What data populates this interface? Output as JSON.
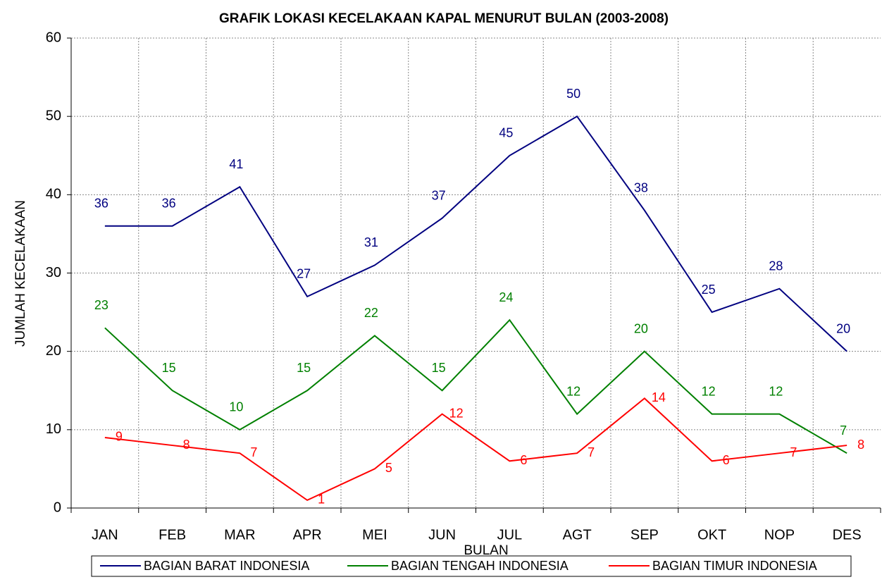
{
  "chart_data": {
    "type": "line",
    "title": "GRAFIK LOKASI KECELAKAAN KAPAL MENURUT BULAN (2003-2008)",
    "x_label": "BULAN",
    "y_label": "JUMLAH KECELAKAAN",
    "categories": [
      "JAN",
      "FEB",
      "MAR",
      "APR",
      "MEI",
      "JUN",
      "JUL",
      "AGT",
      "SEP",
      "OKT",
      "NOP",
      "DES"
    ],
    "series": [
      {
        "name": "BAGIAN BARAT INDONESIA",
        "color": "#000080",
        "values": [
          36,
          36,
          41,
          27,
          31,
          37,
          45,
          50,
          38,
          25,
          28,
          20
        ]
      },
      {
        "name": "BAGIAN TENGAH INDONESIA",
        "color": "#008000",
        "values": [
          23,
          15,
          10,
          15,
          22,
          15,
          24,
          12,
          20,
          12,
          12,
          7
        ]
      },
      {
        "name": "BAGIAN TIMUR INDONESIA",
        "color": "#ff0000",
        "values": [
          9,
          8,
          7,
          1,
          5,
          12,
          6,
          7,
          14,
          6,
          7,
          8
        ]
      }
    ],
    "ylim": [
      0,
      60
    ],
    "yticks": [
      0,
      10,
      20,
      30,
      40,
      50,
      60
    ],
    "grid": true,
    "legend": "bottom"
  }
}
